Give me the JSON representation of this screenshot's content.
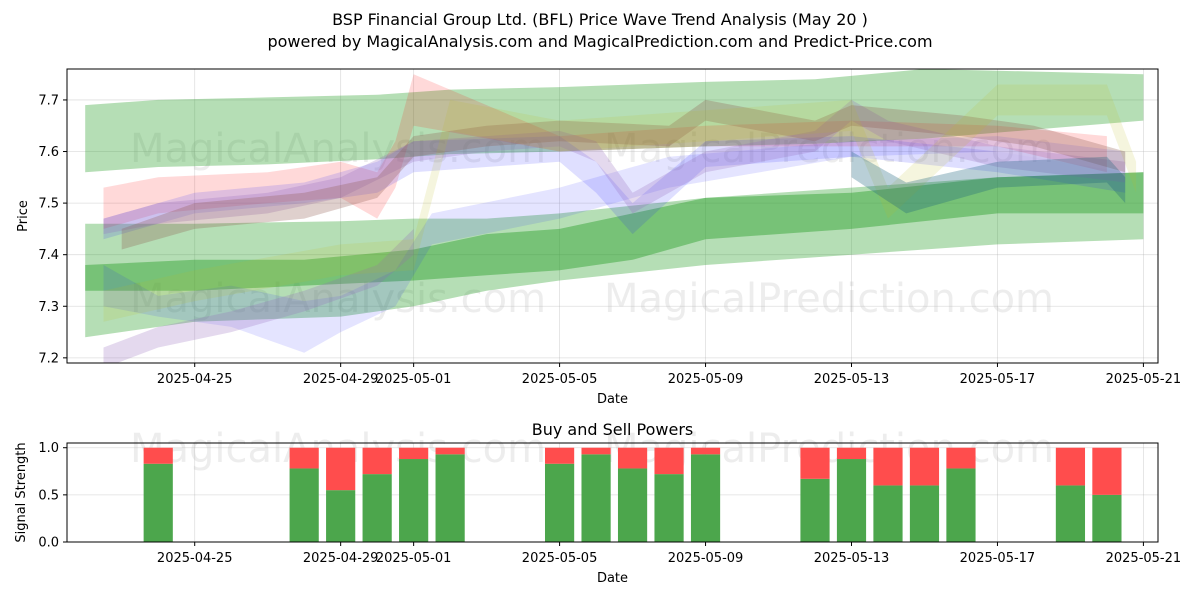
{
  "title_line1": "BSP Financial Group Ltd. (BFL) Price Wave Trend Analysis (May 20 )",
  "title_line2": "powered by MagicalAnalysis.com and MagicalPrediction.com and Predict-Price.com",
  "watermarks": [
    "MagicalAnalysis.com",
    "MagicalPrediction.com"
  ],
  "chart_data": [
    {
      "type": "area",
      "title": "",
      "xlabel": "Date",
      "ylabel": "Price",
      "xlim": [
        -3.5,
        26.4
      ],
      "ylim": [
        7.19,
        7.76
      ],
      "x_origin_date": "2025-04-25",
      "xtick_labels": [
        "2025-04-25",
        "2025-04-29",
        "2025-05-01",
        "2025-05-05",
        "2025-05-09",
        "2025-05-13",
        "2025-05-17",
        "2025-05-21"
      ],
      "xtick_values": [
        0,
        4,
        6,
        10,
        14,
        18,
        22,
        26
      ],
      "ytick_labels": [
        "7.2",
        "7.3",
        "7.4",
        "7.5",
        "7.6",
        "7.7"
      ],
      "ytick_values": [
        7.2,
        7.3,
        7.4,
        7.5,
        7.6,
        7.7
      ],
      "grid": true,
      "series": [
        {
          "name": "green-wide-top",
          "color": "#2ca02c",
          "opacity": 0.35,
          "x": [
            -3,
            -1,
            2,
            5,
            7,
            10,
            14,
            17,
            20,
            26
          ],
          "upper": [
            7.69,
            7.7,
            7.705,
            7.71,
            7.72,
            7.725,
            7.735,
            7.74,
            7.76,
            7.75
          ],
          "lower": [
            7.56,
            7.57,
            7.575,
            7.585,
            7.595,
            7.6,
            7.61,
            7.615,
            7.625,
            7.66
          ]
        },
        {
          "name": "green-low-band",
          "color": "#2ca02c",
          "opacity": 0.35,
          "x": [
            -3,
            0,
            4,
            6,
            8,
            10,
            14,
            18,
            22,
            26
          ],
          "upper": [
            7.46,
            7.46,
            7.465,
            7.47,
            7.47,
            7.48,
            7.51,
            7.53,
            7.55,
            7.56
          ],
          "lower": [
            7.24,
            7.27,
            7.28,
            7.3,
            7.33,
            7.35,
            7.38,
            7.4,
            7.42,
            7.43
          ]
        },
        {
          "name": "green-mid-band",
          "color": "#2ca02c",
          "opacity": 0.45,
          "x": [
            -3,
            0,
            3,
            6,
            8,
            10,
            12,
            14,
            18,
            22,
            26
          ],
          "upper": [
            7.38,
            7.39,
            7.39,
            7.41,
            7.44,
            7.45,
            7.48,
            7.51,
            7.52,
            7.55,
            7.56
          ],
          "lower": [
            7.33,
            7.33,
            7.34,
            7.35,
            7.36,
            7.37,
            7.39,
            7.43,
            7.45,
            7.48,
            7.48
          ]
        },
        {
          "name": "red-rising",
          "color": "#ff0000",
          "opacity": 0.15,
          "x": [
            -2.5,
            -1,
            2,
            4,
            5,
            5.5,
            6,
            10,
            14,
            18,
            22,
            25
          ],
          "upper": [
            7.53,
            7.55,
            7.56,
            7.58,
            7.56,
            7.62,
            7.75,
            7.63,
            7.65,
            7.66,
            7.65,
            7.63
          ],
          "lower": [
            7.45,
            7.48,
            7.5,
            7.51,
            7.47,
            7.53,
            7.65,
            7.6,
            7.61,
            7.61,
            7.61,
            7.56
          ]
        },
        {
          "name": "blue-wave",
          "color": "#1f1fff",
          "opacity": 0.12,
          "x": [
            -2.5,
            -1,
            1,
            3,
            4,
            5.5,
            6.5,
            10,
            13,
            18,
            22,
            25.5
          ],
          "upper": [
            7.38,
            7.32,
            7.34,
            7.31,
            7.32,
            7.37,
            7.48,
            7.53,
            7.59,
            7.62,
            7.63,
            7.6
          ],
          "lower": [
            7.3,
            7.28,
            7.26,
            7.21,
            7.25,
            7.3,
            7.42,
            7.47,
            7.53,
            7.59,
            7.6,
            7.56
          ]
        },
        {
          "name": "blue-upper-wave",
          "color": "#1f1fff",
          "opacity": 0.14,
          "x": [
            -2.5,
            0,
            3,
            5,
            6,
            10,
            11,
            12,
            14,
            18,
            22,
            25.5
          ],
          "upper": [
            7.47,
            7.52,
            7.54,
            7.58,
            7.62,
            7.63,
            7.58,
            7.5,
            7.62,
            7.63,
            7.6,
            7.56
          ],
          "lower": [
            7.43,
            7.48,
            7.5,
            7.52,
            7.56,
            7.58,
            7.52,
            7.44,
            7.57,
            7.59,
            7.56,
            7.52
          ]
        },
        {
          "name": "purple-snake",
          "color": "#9467bd",
          "opacity": 0.25,
          "x": [
            -2.5,
            -1,
            2,
            4,
            6,
            8,
            10,
            11,
            12,
            14,
            17,
            18,
            19,
            22,
            25.5
          ],
          "upper": [
            7.47,
            7.5,
            7.52,
            7.55,
            7.62,
            7.63,
            7.64,
            7.62,
            7.52,
            7.6,
            7.64,
            7.7,
            7.66,
            7.61,
            7.58
          ],
          "lower": [
            7.44,
            7.46,
            7.48,
            7.51,
            7.58,
            7.6,
            7.61,
            7.58,
            7.48,
            7.56,
            7.6,
            7.66,
            7.62,
            7.57,
            7.54
          ]
        },
        {
          "name": "purple-low",
          "color": "#9467bd",
          "opacity": 0.25,
          "x": [
            -2.5,
            -1,
            1,
            3,
            5,
            6
          ],
          "upper": [
            7.22,
            7.26,
            7.29,
            7.33,
            7.38,
            7.45
          ],
          "lower": [
            7.18,
            7.22,
            7.25,
            7.29,
            7.34,
            7.4
          ]
        },
        {
          "name": "brown-trend",
          "color": "#8c564b",
          "opacity": 0.28,
          "x": [
            -2,
            0,
            3,
            5,
            6,
            8,
            10,
            13,
            14,
            17,
            18,
            21,
            23,
            25.5
          ],
          "upper": [
            7.45,
            7.5,
            7.52,
            7.55,
            7.63,
            7.65,
            7.66,
            7.65,
            7.7,
            7.66,
            7.69,
            7.67,
            7.65,
            7.6
          ],
          "lower": [
            7.41,
            7.45,
            7.47,
            7.51,
            7.59,
            7.61,
            7.62,
            7.61,
            7.66,
            7.62,
            7.65,
            7.63,
            7.61,
            7.56
          ]
        },
        {
          "name": "olive-swing",
          "color": "#bcbd22",
          "opacity": 0.15,
          "x": [
            -2.5,
            0,
            4,
            6,
            7,
            10,
            14,
            18,
            19,
            22,
            25,
            25.8
          ],
          "upper": [
            7.33,
            7.37,
            7.42,
            7.43,
            7.7,
            7.66,
            7.68,
            7.7,
            7.53,
            7.73,
            7.73,
            7.58
          ],
          "lower": [
            7.27,
            7.31,
            7.36,
            7.37,
            7.64,
            7.6,
            7.62,
            7.64,
            7.47,
            7.67,
            7.67,
            7.52
          ]
        },
        {
          "name": "teal-right",
          "color": "#17607a",
          "opacity": 0.3,
          "x": [
            18,
            19.5,
            22,
            25,
            25.5
          ],
          "upper": [
            7.6,
            7.54,
            7.58,
            7.59,
            7.55
          ],
          "lower": [
            7.55,
            7.48,
            7.53,
            7.54,
            7.5
          ]
        }
      ]
    },
    {
      "type": "bar",
      "title": "Buy and Sell Powers",
      "xlabel": "Date",
      "ylabel": "Signal Strength",
      "xlim": [
        -3.5,
        26.4
      ],
      "ylim": [
        0,
        1.05
      ],
      "ytick_labels": [
        "0.0",
        "0.5",
        "1.0"
      ],
      "ytick_values": [
        0.0,
        0.5,
        1.0
      ],
      "xtick_labels": [
        "2025-04-25",
        "2025-04-29",
        "2025-05-01",
        "2025-05-05",
        "2025-05-09",
        "2025-05-13",
        "2025-05-17",
        "2025-05-21"
      ],
      "xtick_values": [
        0,
        4,
        6,
        10,
        14,
        18,
        22,
        26
      ],
      "categories": [
        "2025-04-24",
        "2025-04-28",
        "2025-04-29",
        "2025-04-30",
        "2025-05-01",
        "2025-05-02",
        "2025-05-05",
        "2025-05-06",
        "2025-05-07",
        "2025-05-08",
        "2025-05-09",
        "2025-05-12",
        "2025-05-13",
        "2025-05-14",
        "2025-05-15",
        "2025-05-16",
        "2025-05-19",
        "2025-05-20"
      ],
      "x": [
        -1,
        3,
        4,
        5,
        6,
        7,
        10,
        11,
        12,
        13,
        14,
        17,
        18,
        19,
        20,
        21,
        24,
        25
      ],
      "series": [
        {
          "name": "Buy",
          "color": "#4ca64c",
          "values": [
            0.83,
            0.78,
            0.55,
            0.72,
            0.88,
            0.93,
            0.83,
            0.93,
            0.78,
            0.72,
            0.93,
            0.67,
            0.88,
            0.6,
            0.6,
            0.78,
            0.6,
            0.5
          ]
        },
        {
          "name": "Sell",
          "color": "#ff4d4d",
          "values": [
            0.17,
            0.22,
            0.45,
            0.28,
            0.12,
            0.07,
            0.17,
            0.07,
            0.22,
            0.28,
            0.07,
            0.33,
            0.12,
            0.4,
            0.4,
            0.22,
            0.4,
            0.5
          ]
        }
      ]
    }
  ]
}
